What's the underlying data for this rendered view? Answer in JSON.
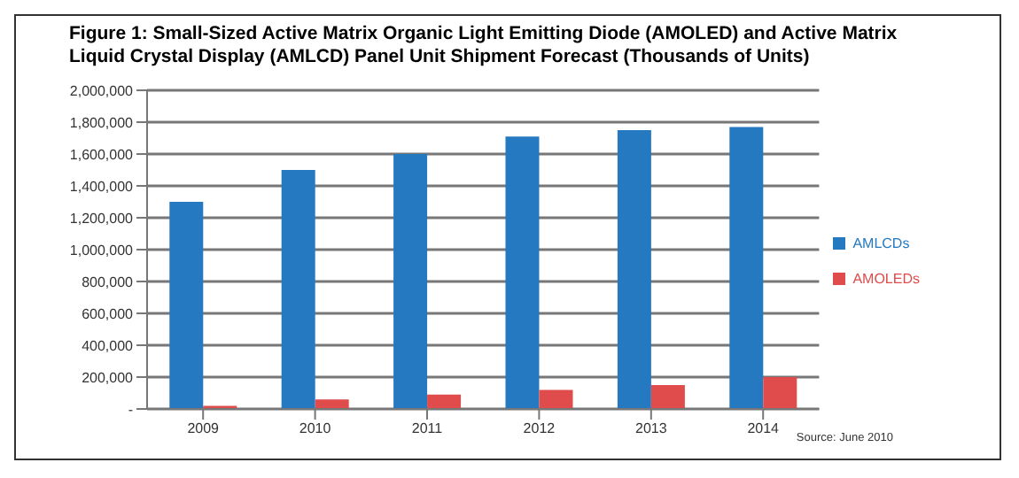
{
  "chart_data": {
    "type": "bar",
    "title": "Figure 1: Small-Sized Active Matrix Organic Light Emitting Diode (AMOLED) and Active Matrix Liquid Crystal Display (AMLCD) Panel Unit Shipment Forecast (Thousands of Units)",
    "categories": [
      "2009",
      "2010",
      "2011",
      "2012",
      "2013",
      "2014"
    ],
    "series": [
      {
        "name": "AMLCDs",
        "color": "#2479c1",
        "values": [
          1300000,
          1500000,
          1600000,
          1710000,
          1750000,
          1770000
        ]
      },
      {
        "name": "AMOLEDs",
        "color": "#e04b4b",
        "values": [
          20000,
          60000,
          90000,
          120000,
          150000,
          200000
        ]
      }
    ],
    "ylim": [
      0,
      2000000
    ],
    "yticks": [
      {
        "value": 0,
        "label": "-"
      },
      {
        "value": 200000,
        "label": "200,000"
      },
      {
        "value": 400000,
        "label": "400,000"
      },
      {
        "value": 600000,
        "label": "600,000"
      },
      {
        "value": 800000,
        "label": "800,000"
      },
      {
        "value": 1000000,
        "label": "1,000,000"
      },
      {
        "value": 1200000,
        "label": "1,200,000"
      },
      {
        "value": 1400000,
        "label": "1,400,000"
      },
      {
        "value": 1600000,
        "label": "1,600,000"
      },
      {
        "value": 1800000,
        "label": "1,800,000"
      },
      {
        "value": 2000000,
        "label": "2,000,000"
      }
    ],
    "grid": "y",
    "legend": "right",
    "annotations": [
      "Source: June 2010"
    ]
  }
}
